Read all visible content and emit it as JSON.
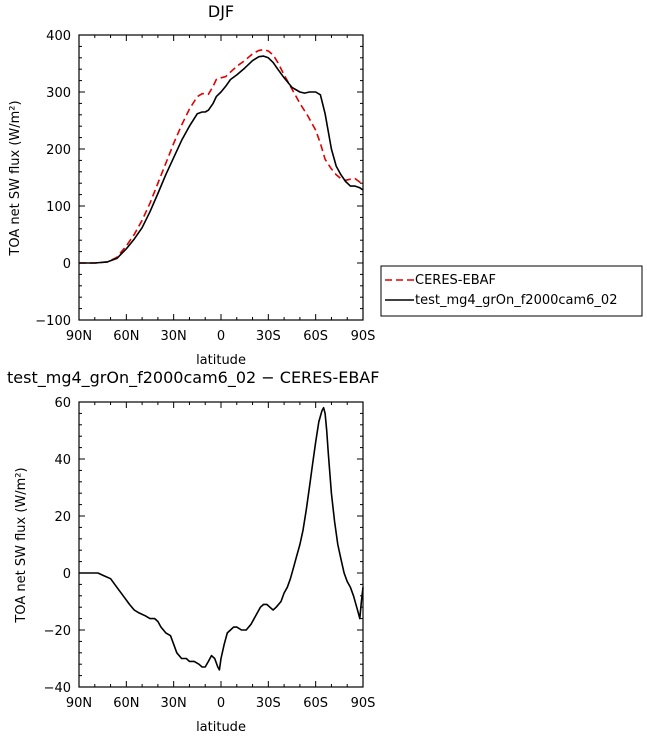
{
  "chart_data": [
    {
      "type": "line",
      "title": "DJF",
      "xlabel": "latitude",
      "ylabel": "TOA net SW flux (W/m²)",
      "xlim": [
        -90,
        90
      ],
      "ylim": [
        -100,
        400
      ],
      "x_tick_values": [
        -90,
        -60,
        -30,
        0,
        30,
        60,
        90
      ],
      "x_tick_labels": [
        "90N",
        "60N",
        "30N",
        "0",
        "30S",
        "60S",
        "90S"
      ],
      "y_tick_values": [
        -100,
        0,
        100,
        200,
        300,
        400
      ],
      "y_tick_labels": [
        "−100",
        "0",
        "100",
        "200",
        "300",
        "400"
      ],
      "legend_position": "right, outside plot",
      "series": [
        {
          "name": "CERES-EBAF",
          "color": "#e00000",
          "dash": "dashed",
          "x": [
            -90,
            -80,
            -72,
            -66,
            -60,
            -55,
            -50,
            -45,
            -40,
            -35,
            -30,
            -25,
            -20,
            -15,
            -12,
            -10,
            -8,
            -5,
            -3,
            0,
            3,
            6,
            10,
            15,
            20,
            24,
            27,
            30,
            33,
            36,
            40,
            45,
            50,
            55,
            60,
            63,
            66,
            70,
            73,
            76,
            79,
            82,
            85,
            88,
            90
          ],
          "y": [
            0,
            0,
            2,
            10,
            30,
            50,
            75,
            105,
            140,
            175,
            210,
            242,
            270,
            292,
            297,
            297,
            296,
            310,
            322,
            325,
            327,
            335,
            345,
            355,
            367,
            373,
            374,
            372,
            365,
            352,
            330,
            305,
            280,
            258,
            233,
            210,
            182,
            165,
            155,
            148,
            145,
            147,
            148,
            142,
            137
          ]
        },
        {
          "name": "test_mg4_grOn_f2000cam6_02",
          "color": "#000000",
          "dash": "solid",
          "x": [
            -90,
            -80,
            -72,
            -66,
            -60,
            -55,
            -50,
            -45,
            -40,
            -35,
            -30,
            -25,
            -20,
            -15,
            -12,
            -10,
            -8,
            -5,
            -3,
            0,
            3,
            6,
            10,
            15,
            20,
            24,
            27,
            30,
            33,
            36,
            40,
            45,
            50,
            53,
            56,
            60,
            63,
            66,
            70,
            73,
            76,
            79,
            82,
            85,
            88,
            90
          ],
          "y": [
            0,
            0,
            2,
            8,
            25,
            42,
            62,
            90,
            122,
            155,
            185,
            215,
            240,
            262,
            265,
            265,
            268,
            280,
            292,
            300,
            310,
            322,
            330,
            342,
            355,
            362,
            363,
            360,
            352,
            340,
            325,
            308,
            300,
            298,
            300,
            300,
            295,
            262,
            200,
            170,
            155,
            143,
            135,
            135,
            132,
            128
          ]
        }
      ]
    },
    {
      "type": "line",
      "title": "test_mg4_grOn_f2000cam6_02 − CERES-EBAF",
      "xlabel": "latitude",
      "ylabel": "TOA net SW flux (W/m²)",
      "xlim": [
        -90,
        90
      ],
      "ylim": [
        -40,
        60
      ],
      "x_tick_values": [
        -90,
        -60,
        -30,
        0,
        30,
        60,
        90
      ],
      "x_tick_labels": [
        "90N",
        "60N",
        "30N",
        "0",
        "30S",
        "60S",
        "90S"
      ],
      "y_tick_values": [
        -40,
        -20,
        0,
        20,
        40,
        60
      ],
      "y_tick_labels": [
        "−40",
        "−20",
        "0",
        "20",
        "40",
        "60"
      ],
      "series": [
        {
          "color": "#000000",
          "dash": "solid",
          "x": [
            -90,
            -82,
            -78,
            -74,
            -70,
            -66,
            -62,
            -58,
            -55,
            -52,
            -48,
            -45,
            -42,
            -40,
            -38,
            -35,
            -32,
            -30,
            -28,
            -25,
            -22,
            -20,
            -17,
            -14,
            -12,
            -10,
            -8,
            -6,
            -4,
            -2,
            -1,
            0,
            2,
            4,
            6,
            8,
            10,
            13,
            16,
            19,
            22,
            25,
            27,
            29,
            31,
            33,
            35,
            38,
            40,
            42,
            44,
            46,
            48,
            50,
            52,
            54,
            56,
            58,
            60,
            62,
            64,
            65,
            66,
            67,
            68,
            70,
            72,
            74,
            76,
            78,
            80,
            82,
            84,
            86,
            87,
            88,
            89,
            90
          ],
          "y": [
            0,
            0,
            0,
            -1,
            -2,
            -5,
            -8,
            -11,
            -13,
            -14,
            -15,
            -16,
            -16,
            -17,
            -19,
            -21,
            -22,
            -25,
            -28,
            -30,
            -30,
            -31,
            -31,
            -32,
            -33,
            -33,
            -31,
            -29,
            -30,
            -33,
            -34,
            -30,
            -25,
            -21,
            -20,
            -19,
            -19,
            -20,
            -20,
            -18,
            -15,
            -12,
            -11,
            -11,
            -12,
            -13,
            -12,
            -10,
            -7,
            -5,
            -2,
            2,
            6,
            10,
            15,
            22,
            30,
            38,
            46,
            53,
            57,
            58,
            56,
            50,
            42,
            28,
            18,
            10,
            5,
            0,
            -3,
            -5,
            -8,
            -12,
            -14,
            -16,
            -10,
            -5
          ]
        }
      ]
    }
  ]
}
